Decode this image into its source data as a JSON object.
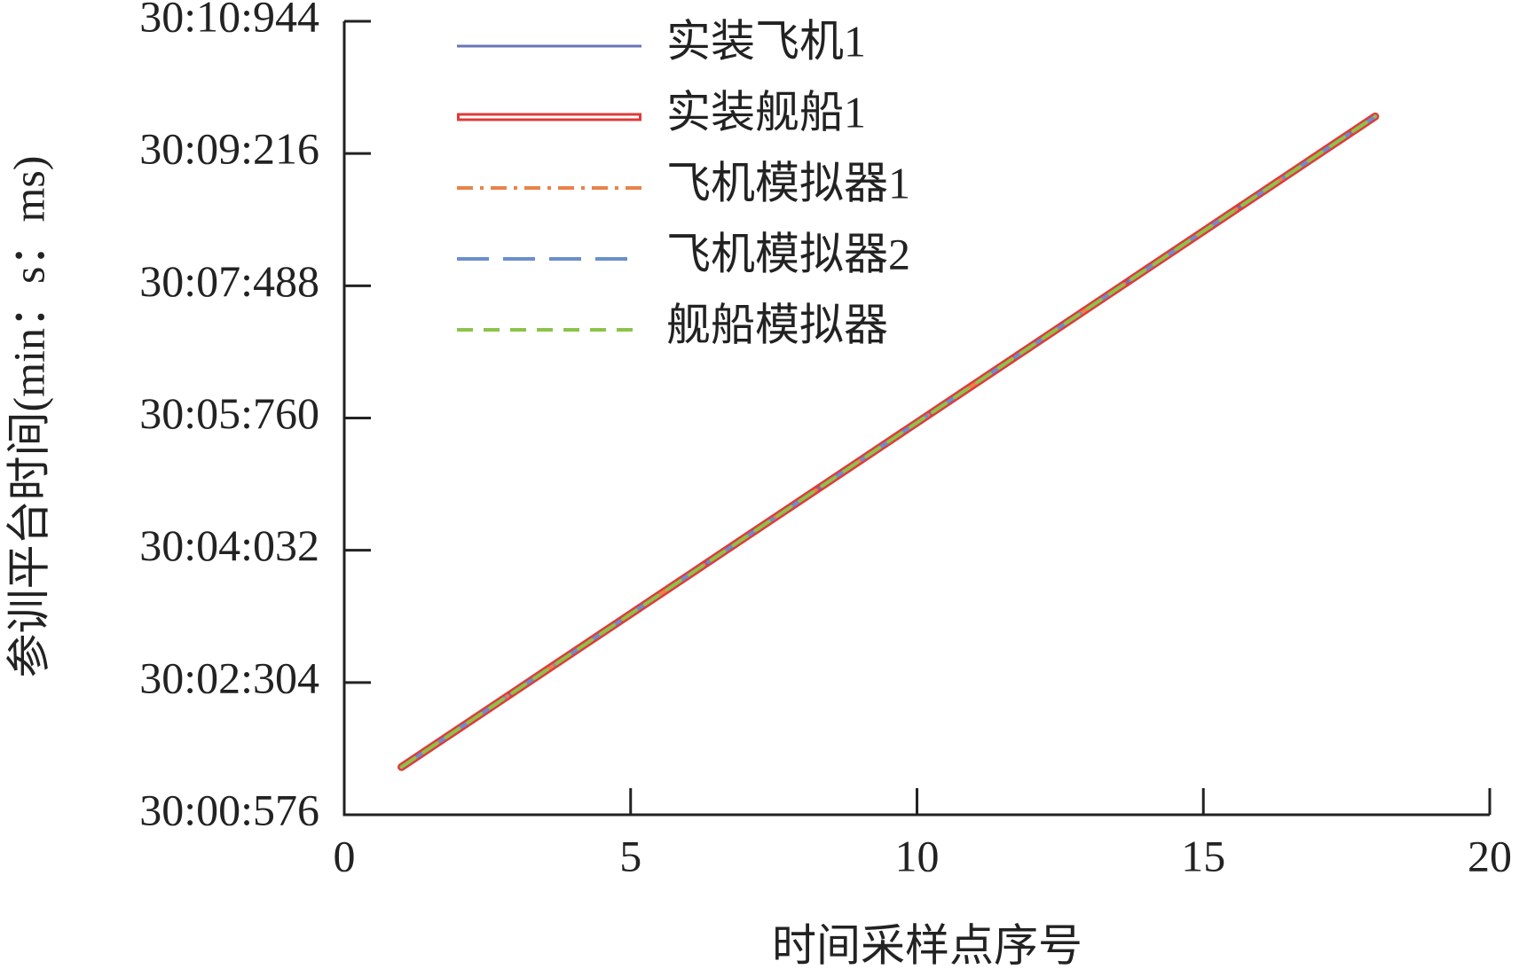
{
  "chart_data": {
    "type": "line",
    "x_label": "时间采样点序号",
    "y_label": "参训平台时间(min：s：ms)",
    "x": [
      1,
      2,
      3,
      4,
      5,
      6,
      7,
      8,
      9,
      10,
      11,
      12,
      13,
      14,
      15,
      16,
      17,
      18
    ],
    "xlim": [
      0,
      20
    ],
    "xticks": [
      0,
      5,
      10,
      15,
      20
    ],
    "ylim": [
      1800576,
      1810944
    ],
    "yticks": [
      {
        "value": 1800576,
        "label": "30:00:576"
      },
      {
        "value": 1802304,
        "label": "30:02:304"
      },
      {
        "value": 1804032,
        "label": "30:04:032"
      },
      {
        "value": 1805760,
        "label": "30:05:760"
      },
      {
        "value": 1807488,
        "label": "30:07:488"
      },
      {
        "value": 1809216,
        "label": "30:09:216"
      },
      {
        "value": 1810944,
        "label": "30:10:944"
      }
    ],
    "legend": "upper left",
    "series": [
      {
        "name": "实装飞机1",
        "color": "#6a75b8",
        "values": [
          1801200,
          1801700,
          1802200,
          1802700,
          1803200,
          1803700,
          1804200,
          1804700,
          1805200,
          1805700,
          1806200,
          1806700,
          1807200,
          1807700,
          1808200,
          1808700,
          1809200,
          1809700
        ]
      },
      {
        "name": "实装舰船1",
        "color": "#e03a3a",
        "values": [
          1801200,
          1801700,
          1802200,
          1802700,
          1803200,
          1803700,
          1804200,
          1804700,
          1805200,
          1805700,
          1806200,
          1806700,
          1807200,
          1807700,
          1808200,
          1808700,
          1809200,
          1809700
        ]
      },
      {
        "name": "飞机模拟器1",
        "color": "#e8834a",
        "values": [
          1801200,
          1801700,
          1802200,
          1802700,
          1803200,
          1803700,
          1804200,
          1804700,
          1805200,
          1805700,
          1806200,
          1806700,
          1807200,
          1807700,
          1808200,
          1808700,
          1809200,
          1809700
        ]
      },
      {
        "name": "飞机模拟器2",
        "color": "#6a8fcc",
        "values": [
          1801200,
          1801700,
          1802200,
          1802700,
          1803200,
          1803700,
          1804200,
          1804700,
          1805200,
          1805700,
          1806200,
          1806700,
          1807200,
          1807700,
          1808200,
          1808700,
          1809200,
          1809700
        ]
      },
      {
        "name": "舰船模拟器",
        "color": "#8bc34a",
        "values": [
          1801200,
          1801700,
          1802200,
          1802700,
          1803200,
          1803700,
          1804200,
          1804700,
          1805200,
          1805700,
          1806200,
          1806700,
          1807200,
          1807700,
          1808200,
          1808700,
          1809200,
          1809700
        ]
      }
    ]
  }
}
